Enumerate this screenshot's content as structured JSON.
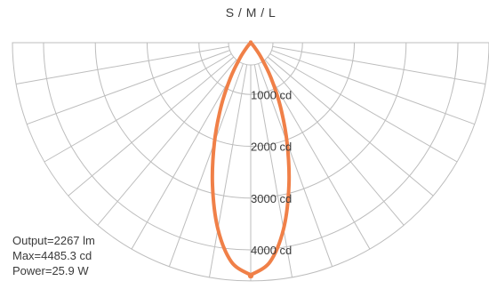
{
  "chart_data": {
    "type": "polar",
    "title": "S / M / L",
    "radial_ticks": [
      1000,
      2000,
      3000,
      4000
    ],
    "radial_tick_labels": [
      "1000 cd",
      "2000 cd",
      "3000 cd",
      "4000 cd"
    ],
    "r_max": 4600,
    "angle_grid_step_deg": 10,
    "angle_range_deg": [
      -90,
      90
    ],
    "series": [
      {
        "color": "#f08048",
        "angles_deg": [
          0,
          5,
          10,
          15,
          20,
          25,
          30,
          35,
          40,
          45
        ],
        "values": [
          4485.3,
          4250,
          3650,
          2850,
          2050,
          1350,
          780,
          360,
          110,
          0
        ]
      }
    ],
    "stats": {
      "output": "Output=2267 lm",
      "max": "Max=4485.3 cd",
      "power": "Power=25.9 W"
    }
  }
}
